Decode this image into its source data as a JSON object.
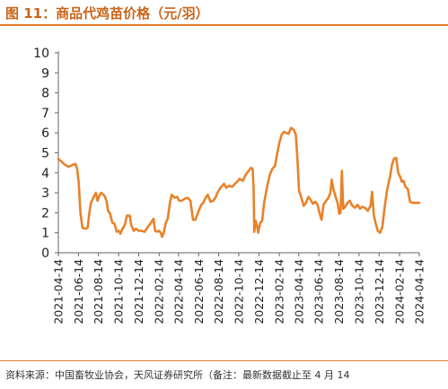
{
  "header": {
    "title": "图 11：商品代鸡苗价格（元/羽）"
  },
  "footer": {
    "source": "资料来源：中国畜牧业协会，天风证券研究所（备注：最新数据截止至 4 月 14"
  },
  "colors": {
    "line": "#e8822a",
    "title": "#c8651b",
    "rule": "#e07b26"
  },
  "chart_data": {
    "type": "line",
    "title": "",
    "xlabel": "",
    "ylabel": "",
    "ylim": [
      0,
      10
    ],
    "yticks": [
      0,
      1,
      2,
      3,
      4,
      5,
      6,
      7,
      8,
      9,
      10
    ],
    "grid": false,
    "legend": "none",
    "x_start": "2021-04-14",
    "x_end": "2024-04-14",
    "xticks": [
      "2021-04-14",
      "2021-06-14",
      "2021-08-14",
      "2021-10-14",
      "2021-12-14",
      "2022-02-14",
      "2022-04-14",
      "2022-06-14",
      "2022-08-14",
      "2022-10-14",
      "2022-12-14",
      "2023-02-14",
      "2023-04-14",
      "2023-06-14",
      "2023-08-14",
      "2023-10-14",
      "2023-12-14",
      "2024-02-14",
      "2024-04-14"
    ],
    "series": [
      {
        "name": "",
        "points": [
          [
            "2021-04-14",
            4.7
          ],
          [
            "2021-05-01",
            4.45
          ],
          [
            "2021-05-14",
            4.3
          ],
          [
            "2021-05-28",
            4.4
          ],
          [
            "2021-06-05",
            4.45
          ],
          [
            "2021-06-10",
            4.2
          ],
          [
            "2021-06-15",
            3.5
          ],
          [
            "2021-06-20",
            2.0
          ],
          [
            "2021-06-26",
            1.25
          ],
          [
            "2021-07-05",
            1.2
          ],
          [
            "2021-07-12",
            1.25
          ],
          [
            "2021-07-17",
            2.0
          ],
          [
            "2021-07-22",
            2.5
          ],
          [
            "2021-08-01",
            2.85
          ],
          [
            "2021-08-06",
            3.0
          ],
          [
            "2021-08-11",
            2.6
          ],
          [
            "2021-08-16",
            2.85
          ],
          [
            "2021-08-22",
            3.0
          ],
          [
            "2021-09-01",
            2.85
          ],
          [
            "2021-09-07",
            2.6
          ],
          [
            "2021-09-12",
            2.1
          ],
          [
            "2021-09-18",
            1.95
          ],
          [
            "2021-09-25",
            1.5
          ],
          [
            "2021-10-02",
            1.45
          ],
          [
            "2021-10-08",
            1.05
          ],
          [
            "2021-10-15",
            1.1
          ],
          [
            "2021-10-19",
            0.95
          ],
          [
            "2021-10-26",
            1.2
          ],
          [
            "2021-11-02",
            1.4
          ],
          [
            "2021-11-08",
            1.85
          ],
          [
            "2021-11-17",
            1.85
          ],
          [
            "2021-11-21",
            1.4
          ],
          [
            "2021-11-29",
            1.1
          ],
          [
            "2021-12-05",
            1.2
          ],
          [
            "2021-12-14",
            1.1
          ],
          [
            "2021-12-23",
            1.1
          ],
          [
            "2022-01-01",
            1.05
          ],
          [
            "2022-01-11",
            1.3
          ],
          [
            "2022-01-20",
            1.5
          ],
          [
            "2022-01-28",
            1.7
          ],
          [
            "2022-02-02",
            1.1
          ],
          [
            "2022-02-08",
            1.05
          ],
          [
            "2022-02-14",
            1.1
          ],
          [
            "2022-02-19",
            1.0
          ],
          [
            "2022-02-23",
            0.8
          ],
          [
            "2022-02-28",
            1.0
          ],
          [
            "2022-03-06",
            1.5
          ],
          [
            "2022-03-12",
            1.7
          ],
          [
            "2022-03-19",
            2.5
          ],
          [
            "2022-03-24",
            2.9
          ],
          [
            "2022-04-02",
            2.75
          ],
          [
            "2022-04-10",
            2.8
          ],
          [
            "2022-04-16",
            2.6
          ],
          [
            "2022-04-24",
            2.6
          ],
          [
            "2022-05-02",
            2.7
          ],
          [
            "2022-05-12",
            2.75
          ],
          [
            "2022-05-20",
            2.6
          ],
          [
            "2022-05-28",
            1.65
          ],
          [
            "2022-06-04",
            1.65
          ],
          [
            "2022-06-14",
            2.1
          ],
          [
            "2022-06-22",
            2.4
          ],
          [
            "2022-06-28",
            2.5
          ],
          [
            "2022-07-05",
            2.75
          ],
          [
            "2022-07-12",
            2.9
          ],
          [
            "2022-07-20",
            2.55
          ],
          [
            "2022-07-28",
            2.6
          ],
          [
            "2022-08-04",
            2.75
          ],
          [
            "2022-08-10",
            3.0
          ],
          [
            "2022-08-19",
            3.25
          ],
          [
            "2022-08-30",
            3.45
          ],
          [
            "2022-09-06",
            3.25
          ],
          [
            "2022-09-14",
            3.35
          ],
          [
            "2022-09-24",
            3.3
          ],
          [
            "2022-10-02",
            3.45
          ],
          [
            "2022-10-09",
            3.55
          ],
          [
            "2022-10-16",
            3.7
          ],
          [
            "2022-10-26",
            3.6
          ],
          [
            "2022-11-04",
            3.9
          ],
          [
            "2022-11-13",
            4.1
          ],
          [
            "2022-11-20",
            4.25
          ],
          [
            "2022-11-25",
            4.2
          ],
          [
            "2022-11-28",
            3.2
          ],
          [
            "2022-11-30",
            1.05
          ],
          [
            "2022-12-04",
            1.6
          ],
          [
            "2022-12-09",
            1.3
          ],
          [
            "2022-12-12",
            1.0
          ],
          [
            "2022-12-18",
            1.5
          ],
          [
            "2022-12-24",
            1.6
          ],
          [
            "2022-12-30",
            2.5
          ],
          [
            "2023-01-08",
            3.3
          ],
          [
            "2023-01-16",
            3.9
          ],
          [
            "2023-01-24",
            4.2
          ],
          [
            "2023-02-01",
            4.35
          ],
          [
            "2023-02-07",
            4.9
          ],
          [
            "2023-02-14",
            5.5
          ],
          [
            "2023-02-21",
            5.9
          ],
          [
            "2023-02-28",
            6.05
          ],
          [
            "2023-03-06",
            6.0
          ],
          [
            "2023-03-14",
            5.95
          ],
          [
            "2023-03-22",
            6.25
          ],
          [
            "2023-03-30",
            6.15
          ],
          [
            "2023-04-05",
            5.9
          ],
          [
            "2023-04-10",
            4.7
          ],
          [
            "2023-04-15",
            3.1
          ],
          [
            "2023-04-22",
            2.75
          ],
          [
            "2023-04-29",
            2.35
          ],
          [
            "2023-05-06",
            2.5
          ],
          [
            "2023-05-13",
            2.8
          ],
          [
            "2023-05-20",
            2.65
          ],
          [
            "2023-05-27",
            2.45
          ],
          [
            "2023-06-03",
            2.55
          ],
          [
            "2023-06-10",
            2.4
          ],
          [
            "2023-06-16",
            2.0
          ],
          [
            "2023-06-22",
            1.65
          ],
          [
            "2023-06-28",
            2.4
          ],
          [
            "2023-07-06",
            2.6
          ],
          [
            "2023-07-13",
            2.75
          ],
          [
            "2023-07-19",
            3.0
          ],
          [
            "2023-07-23",
            3.65
          ],
          [
            "2023-07-28",
            3.2
          ],
          [
            "2023-08-04",
            2.8
          ],
          [
            "2023-08-10",
            2.5
          ],
          [
            "2023-08-15",
            1.95
          ],
          [
            "2023-08-19",
            2.0
          ],
          [
            "2023-08-23",
            4.1
          ],
          [
            "2023-08-27",
            2.2
          ],
          [
            "2023-09-02",
            2.3
          ],
          [
            "2023-09-09",
            2.5
          ],
          [
            "2023-09-16",
            2.6
          ],
          [
            "2023-09-24",
            2.35
          ],
          [
            "2023-10-02",
            2.25
          ],
          [
            "2023-10-10",
            2.4
          ],
          [
            "2023-10-17",
            2.2
          ],
          [
            "2023-10-24",
            2.3
          ],
          [
            "2023-11-01",
            2.25
          ],
          [
            "2023-11-10",
            2.1
          ],
          [
            "2023-11-18",
            2.35
          ],
          [
            "2023-11-23",
            3.05
          ],
          [
            "2023-11-28",
            1.85
          ],
          [
            "2023-12-04",
            1.45
          ],
          [
            "2023-12-10",
            1.1
          ],
          [
            "2023-12-17",
            1.0
          ],
          [
            "2023-12-24",
            1.3
          ],
          [
            "2023-12-31",
            2.3
          ],
          [
            "2024-01-08",
            3.2
          ],
          [
            "2024-01-16",
            3.8
          ],
          [
            "2024-01-22",
            4.4
          ],
          [
            "2024-01-28",
            4.7
          ],
          [
            "2024-02-04",
            4.75
          ],
          [
            "2024-02-10",
            4.0
          ],
          [
            "2024-02-16",
            3.8
          ],
          [
            "2024-02-21",
            3.55
          ],
          [
            "2024-02-26",
            3.6
          ],
          [
            "2024-03-03",
            3.3
          ],
          [
            "2024-03-10",
            3.2
          ],
          [
            "2024-03-17",
            2.55
          ],
          [
            "2024-03-25",
            2.5
          ],
          [
            "2024-04-02",
            2.5
          ],
          [
            "2024-04-08",
            2.5
          ],
          [
            "2024-04-14",
            2.5
          ]
        ]
      }
    ]
  }
}
